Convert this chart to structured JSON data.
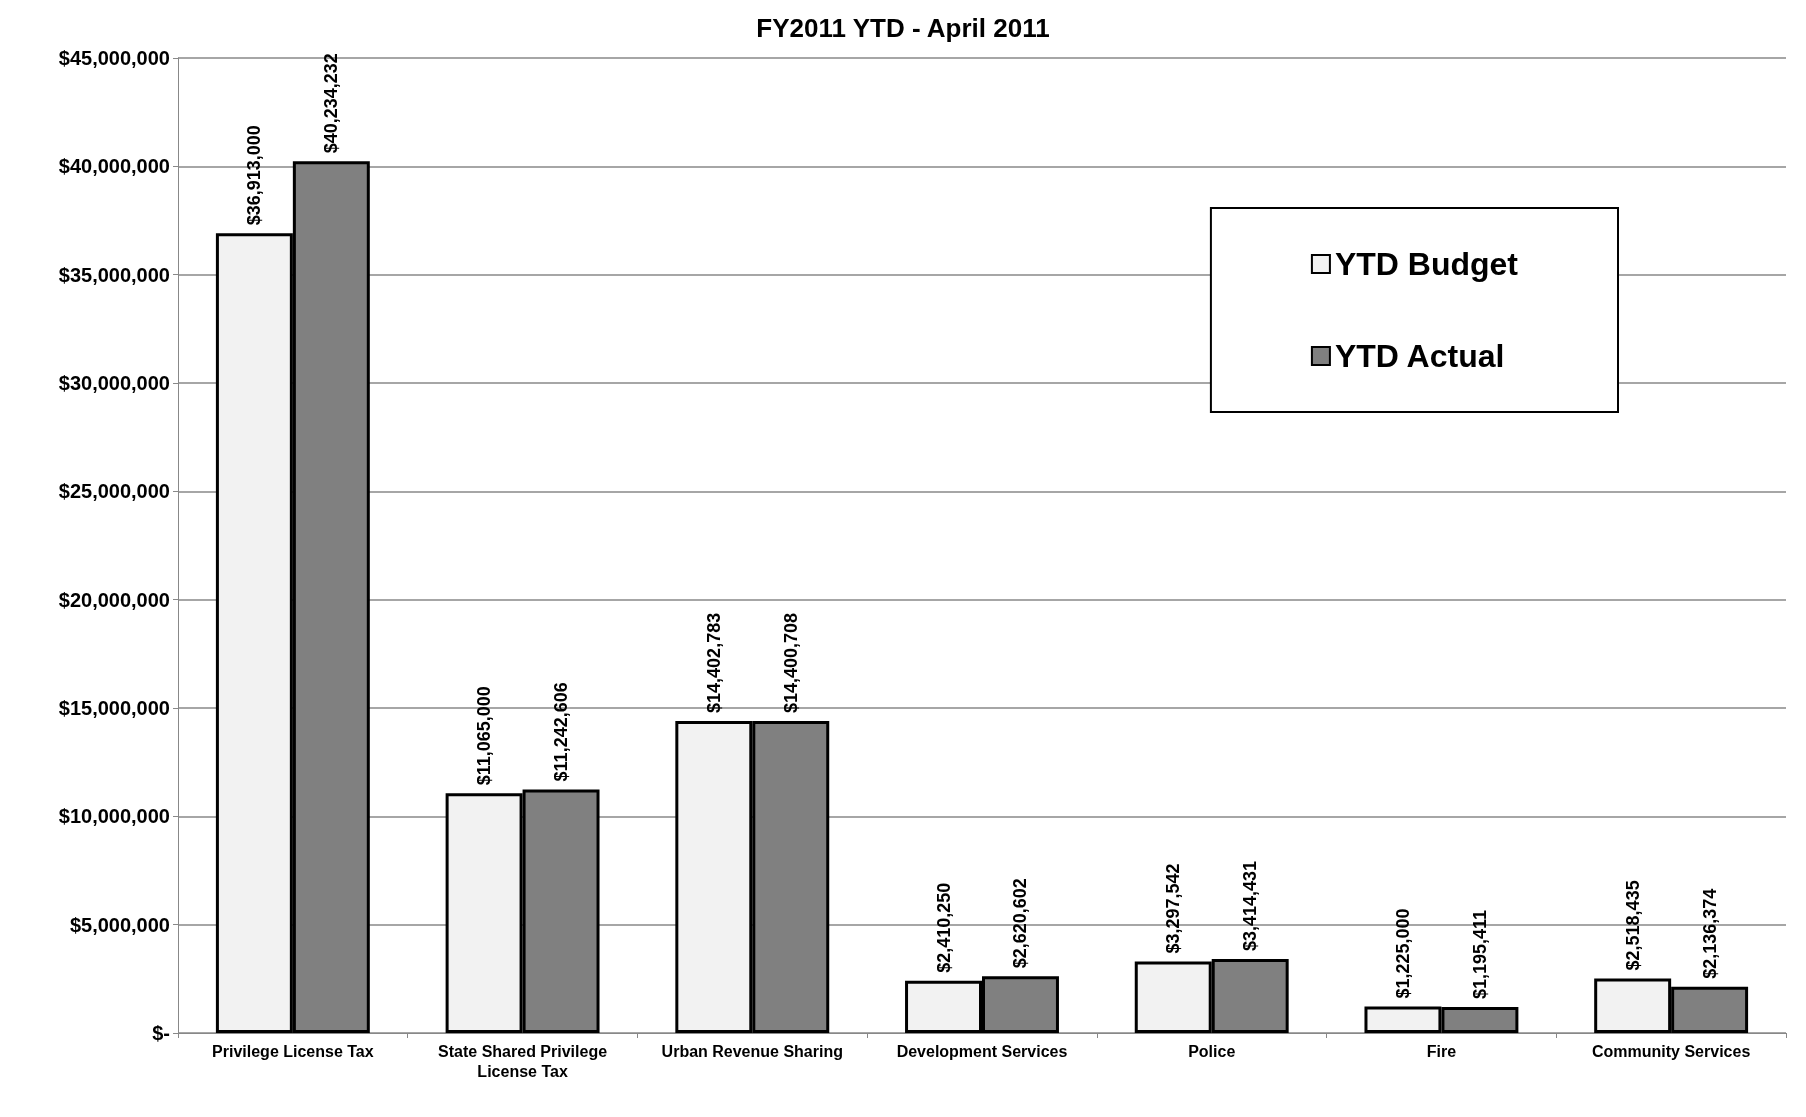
{
  "chart_data": {
    "type": "bar",
    "title": "FY2011 YTD - April 2011",
    "categories": [
      "Privilege License Tax",
      "State Shared Privilege\nLicense Tax",
      "Urban Revenue Sharing",
      "Development Services",
      "Police",
      "Fire",
      "Community Services"
    ],
    "series": [
      {
        "name": "YTD Budget",
        "color": "#f2f2f2",
        "values": [
          36913000,
          11065000,
          14402783,
          2410250,
          3297542,
          1225000,
          2518435
        ],
        "value_labels": [
          "$36,913,000",
          "$11,065,000",
          "$14,402,783",
          "$2,410,250",
          "$3,297,542",
          "$1,225,000",
          "$2,518,435"
        ]
      },
      {
        "name": "YTD Actual",
        "color": "#808080",
        "values": [
          40234232,
          11242606,
          14400708,
          2620602,
          3414431,
          1195411,
          2136374
        ],
        "value_labels": [
          "$40,234,232",
          "$11,242,606",
          "$14,400,708",
          "$2,620,602",
          "$3,414,431",
          "$1,195,411",
          "$2,136,374"
        ]
      }
    ],
    "ylim": [
      0,
      45000000
    ],
    "yticks": [
      {
        "value": 0,
        "label": "$-"
      },
      {
        "value": 5000000,
        "label": "$5,000,000"
      },
      {
        "value": 10000000,
        "label": "$10,000,000"
      },
      {
        "value": 15000000,
        "label": "$15,000,000"
      },
      {
        "value": 20000000,
        "label": "$20,000,000"
      },
      {
        "value": 25000000,
        "label": "$25,000,000"
      },
      {
        "value": 30000000,
        "label": "$30,000,000"
      },
      {
        "value": 35000000,
        "label": "$35,000,000"
      },
      {
        "value": 40000000,
        "label": "$40,000,000"
      },
      {
        "value": 45000000,
        "label": "$45,000,000"
      }
    ],
    "grid": "y",
    "legend": "top right"
  }
}
